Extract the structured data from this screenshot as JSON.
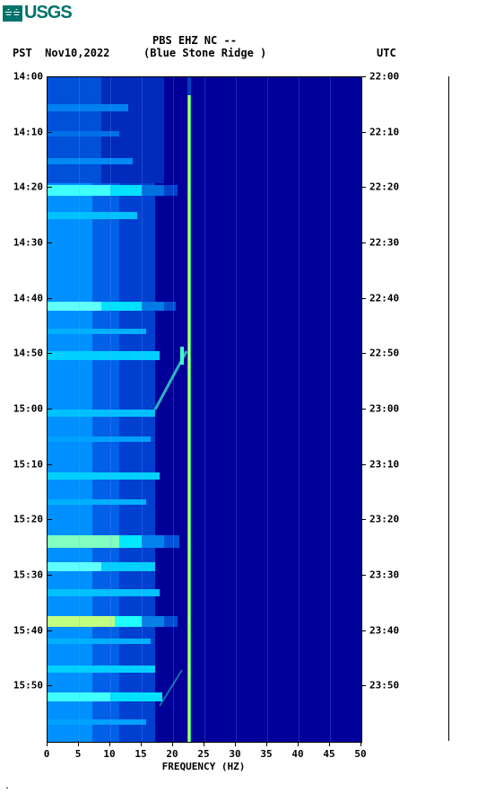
{
  "logo": {
    "text": "USGS"
  },
  "header": {
    "station": "PBS EHZ NC --",
    "tz_left": "PST",
    "date": "Nov10,2022",
    "location": "(Blue Stone Ridge )",
    "tz_right": "UTC"
  },
  "chart": {
    "type": "spectrogram",
    "x_label": "FREQUENCY (HZ)",
    "xlim": [
      0,
      50
    ],
    "x_ticks": [
      0,
      5,
      10,
      15,
      20,
      25,
      30,
      35,
      40,
      45,
      50
    ],
    "y_ticks_left": [
      "14:00",
      "14:10",
      "14:20",
      "14:30",
      "14:40",
      "14:50",
      "15:00",
      "15:10",
      "15:20",
      "15:30",
      "15:40",
      "15:50"
    ],
    "y_ticks_right": [
      "22:00",
      "22:10",
      "22:20",
      "22:30",
      "22:40",
      "22:50",
      "23:00",
      "23:10",
      "23:20",
      "23:30",
      "23:40",
      "23:50"
    ],
    "y_tick_positions_pct": [
      0,
      8.33,
      16.67,
      25,
      33.33,
      41.67,
      50,
      58.33,
      66.67,
      75,
      83.33,
      91.67
    ],
    "background_color": "#00008b",
    "low_freq_color": "#00ffff",
    "mid_color": "#1e40ff",
    "narrowband_freq_hz": 22.5,
    "narrowband_color": "#ffff00",
    "grid_x_hz": [
      5,
      10,
      15,
      20,
      25,
      30,
      35,
      40,
      45
    ]
  },
  "colors": {
    "logo": "#00736a",
    "text": "#000000",
    "plot_border": "#000000"
  }
}
